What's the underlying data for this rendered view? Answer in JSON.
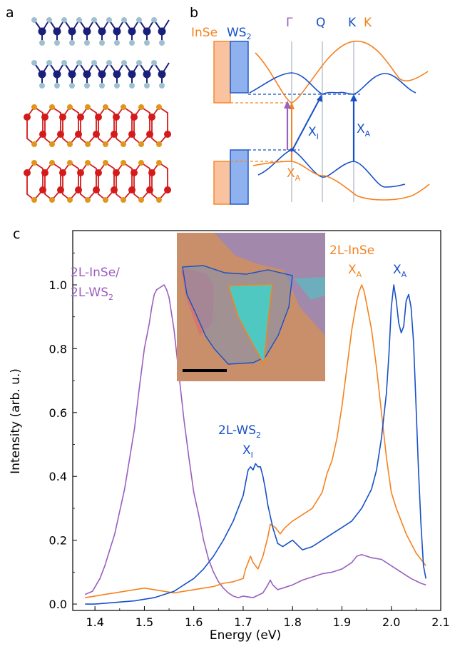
{
  "colors": {
    "purple": "#9a5fbf",
    "orange": "#f5821f",
    "blue": "#1750c8",
    "navy": "#1a1f7a",
    "lightblue": "#9fc0cf",
    "red": "#d41a1a",
    "gold": "#e0961c",
    "insetBg": "#c98f6a",
    "insetFlake": "#4ec8c0",
    "insetLayer": "#9d87b3",
    "insetPink": "#d6746e",
    "bandOrange": "#f8c39e",
    "bandBlue": "#8fb2ef",
    "gray": "#9aa6b8"
  },
  "panels": {
    "a": "a",
    "b": "b",
    "c": "c"
  },
  "band": {
    "insE": "InSe",
    "ws": "WS",
    "sub2": "2",
    "gamma": "Γ",
    "q": "Q",
    "kBlue": "K",
    "kOrange": "K",
    "xA": "X",
    "xASub": "A",
    "xI": "X",
    "xISub": "I",
    "xA2": "X",
    "xA2Sub": "A"
  },
  "chart_data": {
    "type": "line",
    "xlabel": "Energy (eV)",
    "ylabel": "Intensity (arb. u.)",
    "xlim": [
      1.355,
      2.1
    ],
    "ylim": [
      -0.02,
      1.17
    ],
    "xticks": [
      "1.4",
      "1.5",
      "1.6",
      "1.7",
      "1.8",
      "1.9",
      "2.0",
      "2.1"
    ],
    "yticks": [
      "0.0",
      "0.2",
      "0.4",
      "0.6",
      "0.8",
      "1.0"
    ],
    "xtickValues": [
      1.4,
      1.5,
      1.6,
      1.7,
      1.8,
      1.9,
      2.0,
      2.1
    ],
    "ytickValues": [
      0.0,
      0.2,
      0.4,
      0.6,
      0.8,
      1.0
    ],
    "series": [
      {
        "name": "2L-InSe/2L-WS2",
        "color": "#9a5fbf",
        "x": [
          1.38,
          1.395,
          1.41,
          1.42,
          1.44,
          1.46,
          1.48,
          1.49,
          1.5,
          1.51,
          1.515,
          1.52,
          1.525,
          1.53,
          1.535,
          1.54,
          1.545,
          1.55,
          1.56,
          1.57,
          1.58,
          1.59,
          1.6,
          1.61,
          1.62,
          1.63,
          1.64,
          1.65,
          1.66,
          1.67,
          1.68,
          1.69,
          1.7,
          1.72,
          1.74,
          1.75,
          1.755,
          1.76,
          1.77,
          1.78,
          1.8,
          1.82,
          1.84,
          1.86,
          1.88,
          1.9,
          1.92,
          1.93,
          1.94,
          1.95,
          1.96,
          1.98,
          2.0,
          2.02,
          2.04,
          2.06,
          2.07
        ],
        "y": [
          0.03,
          0.04,
          0.08,
          0.12,
          0.22,
          0.36,
          0.55,
          0.68,
          0.8,
          0.88,
          0.93,
          0.97,
          0.985,
          0.99,
          0.995,
          1.0,
          0.985,
          0.96,
          0.86,
          0.72,
          0.58,
          0.46,
          0.35,
          0.28,
          0.2,
          0.14,
          0.1,
          0.07,
          0.05,
          0.035,
          0.025,
          0.02,
          0.025,
          0.02,
          0.035,
          0.06,
          0.075,
          0.06,
          0.045,
          0.05,
          0.06,
          0.075,
          0.085,
          0.095,
          0.1,
          0.11,
          0.13,
          0.15,
          0.155,
          0.15,
          0.145,
          0.14,
          0.12,
          0.1,
          0.08,
          0.065,
          0.06
        ]
      },
      {
        "name": "2L-InSe",
        "color": "#f5821f",
        "x": [
          1.38,
          1.4,
          1.42,
          1.44,
          1.46,
          1.48,
          1.5,
          1.52,
          1.54,
          1.56,
          1.58,
          1.6,
          1.62,
          1.64,
          1.66,
          1.68,
          1.7,
          1.705,
          1.715,
          1.72,
          1.73,
          1.74,
          1.75,
          1.755,
          1.765,
          1.775,
          1.785,
          1.8,
          1.82,
          1.84,
          1.86,
          1.87,
          1.88,
          1.89,
          1.9,
          1.91,
          1.92,
          1.93,
          1.935,
          1.94,
          1.945,
          1.95,
          1.96,
          1.97,
          1.98,
          1.99,
          2.0,
          2.01,
          2.02,
          2.03,
          2.04,
          2.05,
          2.06,
          2.07
        ],
        "y": [
          0.02,
          0.025,
          0.03,
          0.035,
          0.04,
          0.045,
          0.05,
          0.045,
          0.04,
          0.035,
          0.04,
          0.045,
          0.05,
          0.055,
          0.065,
          0.07,
          0.08,
          0.11,
          0.15,
          0.13,
          0.11,
          0.15,
          0.21,
          0.25,
          0.24,
          0.22,
          0.24,
          0.26,
          0.28,
          0.3,
          0.35,
          0.41,
          0.45,
          0.52,
          0.62,
          0.74,
          0.86,
          0.95,
          0.98,
          1.0,
          0.98,
          0.94,
          0.86,
          0.74,
          0.6,
          0.46,
          0.35,
          0.3,
          0.26,
          0.22,
          0.19,
          0.16,
          0.14,
          0.12
        ]
      },
      {
        "name": "2L-WS2",
        "color": "#1750c8",
        "x": [
          1.38,
          1.4,
          1.44,
          1.48,
          1.52,
          1.56,
          1.58,
          1.6,
          1.62,
          1.64,
          1.66,
          1.68,
          1.69,
          1.7,
          1.705,
          1.71,
          1.715,
          1.72,
          1.725,
          1.73,
          1.735,
          1.74,
          1.745,
          1.75,
          1.76,
          1.77,
          1.78,
          1.79,
          1.8,
          1.82,
          1.84,
          1.86,
          1.88,
          1.9,
          1.92,
          1.94,
          1.96,
          1.97,
          1.98,
          1.99,
          1.995,
          2.0,
          2.005,
          2.01,
          2.015,
          2.02,
          2.025,
          2.03,
          2.035,
          2.04,
          2.045,
          2.05,
          2.055,
          2.06,
          2.065,
          2.07
        ],
        "y": [
          0.0,
          0.0,
          0.005,
          0.01,
          0.02,
          0.04,
          0.06,
          0.08,
          0.11,
          0.15,
          0.2,
          0.26,
          0.3,
          0.34,
          0.38,
          0.42,
          0.43,
          0.42,
          0.44,
          0.43,
          0.43,
          0.4,
          0.36,
          0.31,
          0.24,
          0.19,
          0.18,
          0.19,
          0.2,
          0.17,
          0.18,
          0.2,
          0.22,
          0.24,
          0.26,
          0.3,
          0.36,
          0.42,
          0.52,
          0.66,
          0.78,
          0.93,
          1.0,
          0.95,
          0.88,
          0.85,
          0.87,
          0.95,
          0.97,
          0.93,
          0.82,
          0.62,
          0.42,
          0.25,
          0.12,
          0.08
        ]
      }
    ],
    "annotations": {
      "purpleLine1": "2L-InSe/",
      "purpleLine2": "2L-WS",
      "purpleSub": "2",
      "wsLabel": "2L-WS",
      "wsSub": "2",
      "wsX": "X",
      "wsXSub": "I",
      "inseLabel": "2L-InSe",
      "inseX": "X",
      "inseXSub": "A",
      "wsAX": "X",
      "wsAXSub": "A"
    }
  }
}
